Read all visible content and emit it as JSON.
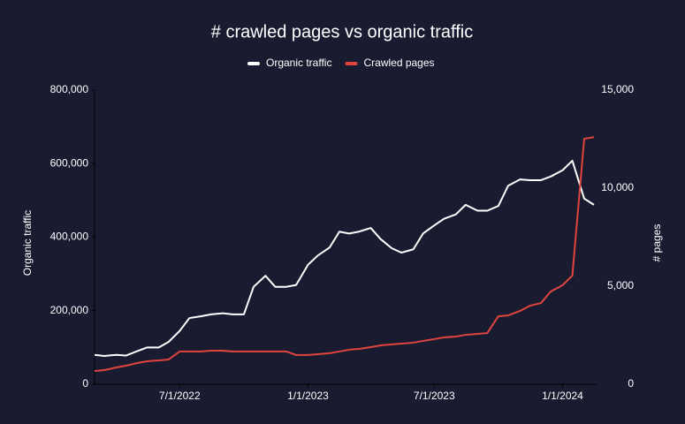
{
  "chart_data": {
    "type": "line",
    "title": "# crawled pages vs organic traffic",
    "x": [
      "3/1/2022",
      "3/15/2022",
      "4/1/2022",
      "4/15/2022",
      "5/1/2022",
      "5/15/2022",
      "6/1/2022",
      "6/15/2022",
      "7/1/2022",
      "7/15/2022",
      "8/1/2022",
      "8/15/2022",
      "9/1/2022",
      "9/15/2022",
      "10/1/2022",
      "10/15/2022",
      "11/1/2022",
      "11/15/2022",
      "12/1/2022",
      "12/15/2022",
      "1/1/2023",
      "1/15/2023",
      "2/1/2023",
      "2/15/2023",
      "3/1/2023",
      "3/15/2023",
      "4/1/2023",
      "4/15/2023",
      "5/1/2023",
      "5/15/2023",
      "6/1/2023",
      "6/15/2023",
      "7/1/2023",
      "7/15/2023",
      "8/1/2023",
      "8/15/2023",
      "9/1/2023",
      "9/15/2023",
      "10/1/2023",
      "10/15/2023",
      "11/1/2023",
      "11/15/2023",
      "12/1/2023",
      "12/15/2023",
      "1/1/2024",
      "1/15/2024",
      "2/1/2024",
      "2/15/2024"
    ],
    "xlim": [
      "3/1/2022",
      "2/15/2024"
    ],
    "xticks": [
      "7/1/2022",
      "1/1/2023",
      "7/1/2023",
      "1/1/2024"
    ],
    "ylabel": "Organic traffic",
    "y2label": "# pages",
    "ylim": [
      0,
      800000
    ],
    "yticks": [
      0,
      {
        "value": 200000,
        "label": "200,000"
      },
      {
        "value": 400000,
        "label": "400,000"
      },
      {
        "value": 600000,
        "label": "600,000"
      },
      {
        "value": 800000,
        "label": "800,000"
      }
    ],
    "y2lim": [
      0,
      15000
    ],
    "y2ticks": [
      0,
      {
        "value": 5000,
        "label": "5,000"
      },
      {
        "value": 10000,
        "label": "10,000"
      },
      {
        "value": 15000,
        "label": "15,000"
      }
    ],
    "series": [
      {
        "name": "Organic traffic",
        "color": "#ffffff",
        "values": [
          80000,
          77000,
          80000,
          78000,
          90000,
          100000,
          100000,
          115000,
          145000,
          180000,
          185000,
          190000,
          193000,
          190000,
          190000,
          265000,
          295000,
          265000,
          265000,
          270000,
          325000,
          350000,
          372000,
          415000,
          410000,
          415000,
          425000,
          395000,
          370000,
          358000,
          367000,
          410000,
          432000,
          450000,
          462000,
          488000,
          472000,
          472000,
          485000,
          540000,
          557000,
          555000,
          555000,
          565000,
          582000,
          608000,
          505000,
          488000
        ]
      },
      {
        "name": "Crawled pages",
        "color": "#e0443e",
        "axis": "y2",
        "values": [
          675,
          720,
          855,
          945,
          1080,
          1170,
          1215,
          1260,
          1670,
          1670,
          1670,
          1710,
          1710,
          1670,
          1670,
          1670,
          1670,
          1670,
          1670,
          1490,
          1490,
          1530,
          1580,
          1670,
          1760,
          1800,
          1890,
          1980,
          2030,
          2070,
          2120,
          2210,
          2300,
          2390,
          2430,
          2520,
          2570,
          2610,
          3470,
          3510,
          3740,
          4000,
          4140,
          4730,
          5050,
          5540,
          12520,
          12600
        ]
      }
    ]
  }
}
